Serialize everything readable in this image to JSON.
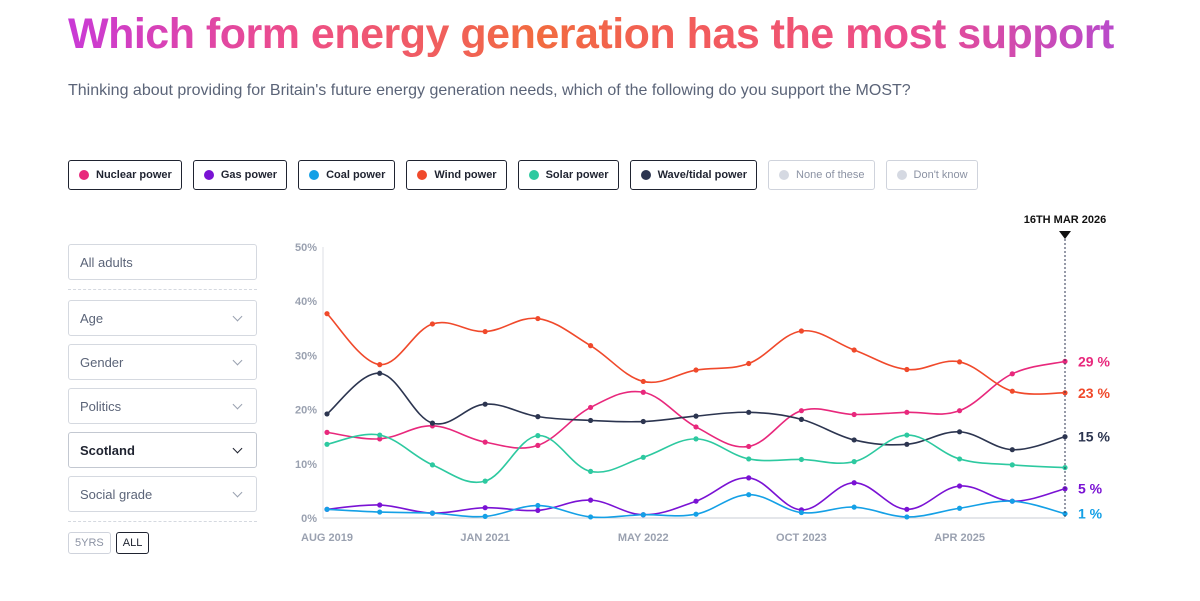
{
  "header": {
    "title": "Which form energy generation has the most support",
    "subtitle": "Thinking about providing for Britain's future energy generation needs, which of the following do you support the MOST?"
  },
  "legend": [
    {
      "label": "Nuclear power",
      "color": "#e8287c",
      "active": true
    },
    {
      "label": "Gas power",
      "color": "#7a12d4",
      "active": true
    },
    {
      "label": "Coal power",
      "color": "#14a0e6",
      "active": true
    },
    {
      "label": "Wind power",
      "color": "#f0492b",
      "active": true
    },
    {
      "label": "Solar power",
      "color": "#2dc9a0",
      "active": true
    },
    {
      "label": "Wave/tidal power",
      "color": "#2c3550",
      "active": true
    },
    {
      "label": "None of these",
      "color": "#d5d9e2",
      "active": false
    },
    {
      "label": "Don't know",
      "color": "#d5d9e2",
      "active": false
    }
  ],
  "filters": {
    "population": "All adults",
    "age": "Age",
    "gender": "Gender",
    "politics": "Politics",
    "region": "Scotland",
    "social_grade": "Social grade",
    "range_5yrs": "5YRS",
    "range_all": "ALL"
  },
  "chart_data": {
    "type": "line",
    "marker_label": "16TH MAR 2026",
    "y_ticks": [
      "0%",
      "10%",
      "20%",
      "30%",
      "40%",
      "50%"
    ],
    "ylim": [
      0,
      50
    ],
    "x_ticks": [
      {
        "label": "AUG 2019",
        "index": 0
      },
      {
        "label": "JAN 2021",
        "index": 3
      },
      {
        "label": "MAY 2022",
        "index": 6
      },
      {
        "label": "OCT 2023",
        "index": 9
      },
      {
        "label": "APR 2025",
        "index": 12
      }
    ],
    "n_points": 15,
    "series": [
      {
        "name": "Nuclear power",
        "color": "#e8287c",
        "end_label": "29 %",
        "values": [
          15.8,
          14.6,
          17.0,
          14.0,
          13.4,
          20.4,
          23.2,
          16.8,
          13.2,
          19.8,
          19.1,
          19.5,
          19.8,
          26.6,
          28.9
        ]
      },
      {
        "name": "Wind power",
        "color": "#f0492b",
        "end_label": "23 %",
        "values": [
          37.7,
          28.3,
          35.8,
          34.4,
          36.8,
          31.8,
          25.2,
          27.3,
          28.5,
          34.5,
          31.0,
          27.4,
          28.8,
          23.4,
          23.1
        ]
      },
      {
        "name": "Wave/tidal power",
        "color": "#2c3550",
        "end_label": "15 %",
        "values": [
          19.2,
          26.7,
          17.5,
          21.0,
          18.7,
          18.0,
          17.8,
          18.8,
          19.5,
          18.2,
          14.4,
          13.6,
          15.9,
          12.6,
          15.0
        ]
      },
      {
        "name": "Solar power",
        "color": "#2dc9a0",
        "end_label": "",
        "values": [
          13.6,
          15.3,
          9.8,
          6.8,
          15.2,
          8.6,
          11.2,
          14.6,
          10.9,
          10.8,
          10.4,
          15.3,
          10.9,
          9.8,
          9.3
        ]
      },
      {
        "name": "Gas power",
        "color": "#7a12d4",
        "end_label": "5 %",
        "values": [
          1.6,
          2.4,
          0.9,
          1.9,
          1.4,
          3.3,
          0.6,
          3.1,
          7.4,
          1.5,
          6.5,
          1.6,
          5.9,
          3.1,
          5.4
        ]
      },
      {
        "name": "Coal power",
        "color": "#14a0e6",
        "end_label": "1 %",
        "values": [
          1.6,
          1.1,
          0.9,
          0.3,
          2.3,
          0.2,
          0.6,
          0.7,
          4.3,
          1.0,
          2.0,
          0.2,
          1.8,
          3.1,
          0.8
        ]
      }
    ]
  }
}
